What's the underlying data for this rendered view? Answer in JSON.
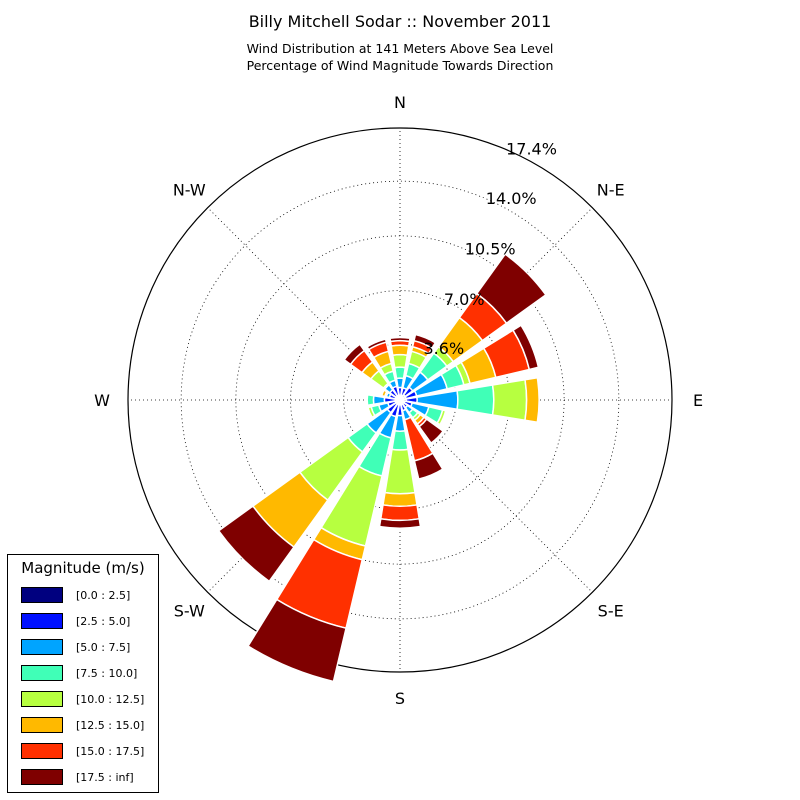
{
  "title": "Billy Mitchell Sodar :: November 2011",
  "subtitle1": "Wind Distribution at 141 Meters Above Sea Level",
  "subtitle2": "Percentage of Wind Magnitude Towards Direction",
  "colors": [
    "#00007f",
    "#0010ff",
    "#00a4ff",
    "#40ffb7",
    "#b7ff40",
    "#ffb900",
    "#ff3000",
    "#7f0000"
  ],
  "chart_data": {
    "type": "windrose",
    "title": "Billy Mitchell Sodar :: November 2011",
    "directions": [
      "N",
      "N-E",
      "E",
      "S-E",
      "S",
      "S-W",
      "W",
      "N-W"
    ],
    "rings": [
      3.6,
      7.0,
      10.5,
      14.0,
      17.4
    ],
    "ring_labels": [
      "3.6%",
      "7.0%",
      "10.5%",
      "14.0%",
      "17.4%"
    ],
    "rmax": 17.4,
    "sector_angles_deg": [
      0,
      22.5,
      45,
      67.5,
      90,
      112.5,
      135,
      157.5,
      180,
      202.5,
      225,
      247.5,
      270,
      292.5,
      315,
      337.5
    ],
    "bins": [
      "[0.0 : 2.5]",
      "[2.5 : 5.0]",
      "[5.0 : 7.5]",
      "[7.5 : 10.0]",
      "[10.0 : 12.5]",
      "[12.5 : 15.0]",
      "[15.0 : 17.5]",
      "[17.5 : inf]"
    ],
    "cumulative_percent": [
      [
        0.3,
        0.8,
        1.4,
        2.1,
        2.9,
        3.5,
        3.8,
        4.0
      ],
      [
        0.3,
        0.8,
        1.6,
        2.4,
        3.2,
        3.5,
        3.9,
        4.3
      ],
      [
        0.4,
        1.0,
        2.2,
        3.7,
        4.2,
        6.5,
        8.4,
        11.5
      ],
      [
        0.4,
        1.1,
        3.1,
        4.2,
        4.6,
        6.3,
        8.5,
        9.1
      ],
      [
        0.4,
        1.1,
        3.7,
        6.0,
        8.1,
        8.9,
        8.9,
        8.9
      ],
      [
        0.3,
        0.8,
        1.9,
        2.8,
        3.0,
        3.0,
        3.0,
        3.0
      ],
      [
        0.3,
        0.6,
        1.0,
        1.4,
        1.6,
        1.9,
        2.1,
        3.4
      ],
      [
        0.3,
        0.7,
        1.3,
        1.3,
        1.3,
        1.3,
        4.0,
        5.2
      ],
      [
        0.3,
        1.0,
        2.0,
        3.2,
        6.0,
        6.8,
        7.7,
        8.2
      ],
      [
        0.3,
        1.1,
        2.5,
        5.0,
        9.6,
        10.5,
        15.0,
        18.5
      ],
      [
        0.3,
        1.0,
        2.6,
        4.1,
        7.9,
        11.6,
        11.6,
        14.3
      ],
      [
        0.3,
        0.8,
        1.4,
        1.9,
        2.1,
        2.1,
        2.1,
        2.1
      ],
      [
        0.3,
        1.0,
        1.7,
        2.1,
        2.1,
        2.1,
        2.1,
        2.1
      ],
      [
        0.3,
        0.7,
        0.9,
        1.0,
        1.0,
        1.2,
        1.2,
        1.2
      ],
      [
        0.3,
        0.8,
        1.2,
        1.3,
        2.3,
        3.0,
        3.9,
        4.4
      ],
      [
        0.3,
        0.9,
        1.3,
        1.9,
        2.4,
        3.2,
        3.8,
        4.0
      ]
    ]
  },
  "legend": {
    "title": "Magnitude (m/s)",
    "items": [
      "[0.0 : 2.5]",
      "[2.5 : 5.0]",
      "[5.0 : 7.5]",
      "[7.5 : 10.0]",
      "[10.0 : 12.5]",
      "[12.5 : 15.0]",
      "[15.0 : 17.5]",
      "[17.5 : inf]"
    ]
  }
}
